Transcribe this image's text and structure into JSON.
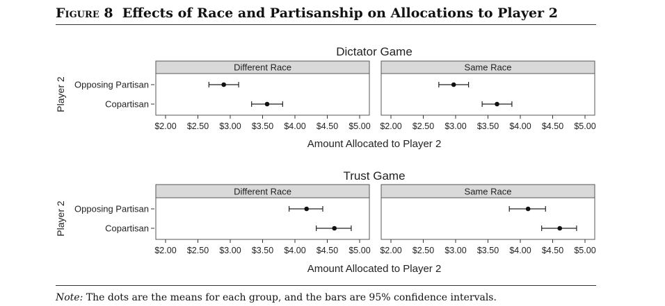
{
  "figure": {
    "label": "Figure 8",
    "title": "Effects of Race and Partisanship on Allocations to Player 2",
    "note_label": "Note:",
    "note_text": "The dots are the means for each group, and the bars are 95% confidence intervals."
  },
  "chart_data": [
    {
      "type": "scatter",
      "title": "Dictator Game",
      "xlabel": "Amount Allocated to Player 2",
      "ylabel": "Player 2",
      "xlim": [
        2.0,
        5.0
      ],
      "x_ticks": [
        "$2.00",
        "$2.50",
        "$3.00",
        "$3.50",
        "$4.00",
        "$4.50",
        "$5.00"
      ],
      "categories": [
        "Opposing Partisan",
        "Copartisan"
      ],
      "panels": [
        {
          "name": "Different Race",
          "points": [
            {
              "category": "Opposing Partisan",
              "mean": 2.9,
              "ci": [
                2.67,
                3.13
              ]
            },
            {
              "category": "Copartisan",
              "mean": 3.57,
              "ci": [
                3.33,
                3.81
              ]
            }
          ]
        },
        {
          "name": "Same Race",
          "points": [
            {
              "category": "Opposing Partisan",
              "mean": 2.97,
              "ci": [
                2.74,
                3.2
              ]
            },
            {
              "category": "Copartisan",
              "mean": 3.64,
              "ci": [
                3.41,
                3.87
              ]
            }
          ]
        }
      ]
    },
    {
      "type": "scatter",
      "title": "Trust Game",
      "xlabel": "Amount Allocated to Player 2",
      "ylabel": "Player 2",
      "xlim": [
        2.0,
        5.0
      ],
      "x_ticks": [
        "$2.00",
        "$2.50",
        "$3.00",
        "$3.50",
        "$4.00",
        "$4.50",
        "$5.00"
      ],
      "categories": [
        "Opposing Partisan",
        "Copartisan"
      ],
      "panels": [
        {
          "name": "Different Race",
          "points": [
            {
              "category": "Opposing Partisan",
              "mean": 4.18,
              "ci": [
                3.91,
                4.43
              ]
            },
            {
              "category": "Copartisan",
              "mean": 4.61,
              "ci": [
                4.33,
                4.87
              ]
            }
          ]
        },
        {
          "name": "Same Race",
          "points": [
            {
              "category": "Opposing Partisan",
              "mean": 4.12,
              "ci": [
                3.83,
                4.39
              ]
            },
            {
              "category": "Copartisan",
              "mean": 4.61,
              "ci": [
                4.33,
                4.87
              ]
            }
          ]
        }
      ]
    }
  ]
}
